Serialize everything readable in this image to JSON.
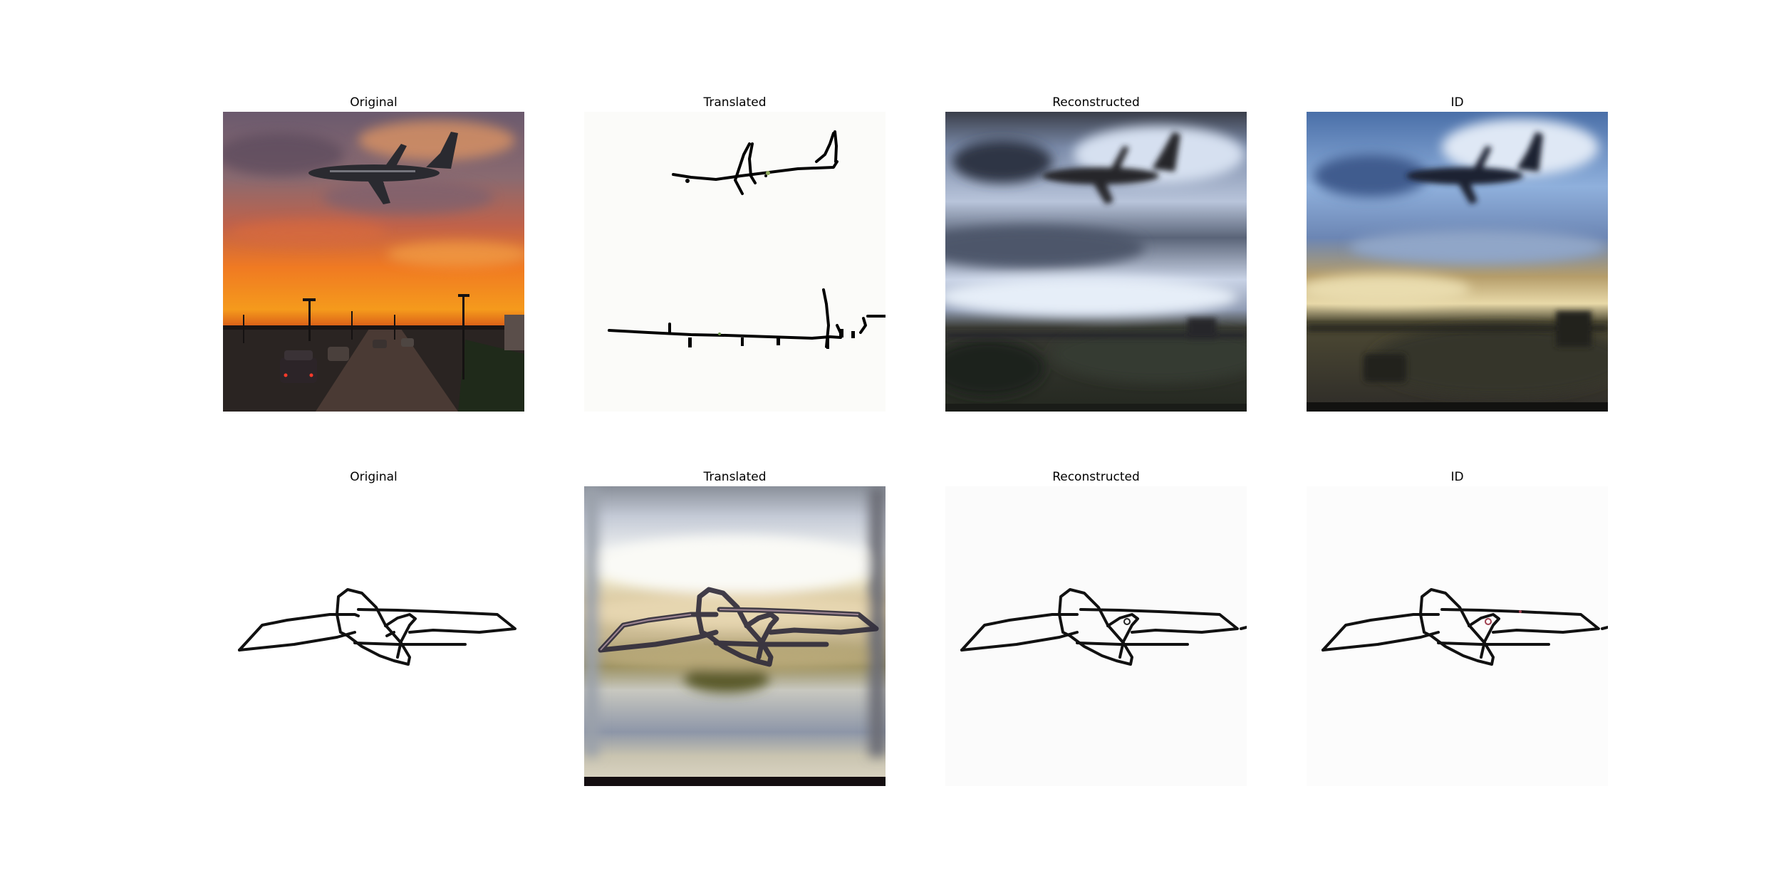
{
  "rows": [
    {
      "panels": [
        {
          "title": "Original"
        },
        {
          "title": "Translated"
        },
        {
          "title": "Reconstructed"
        },
        {
          "title": "ID"
        }
      ]
    },
    {
      "panels": [
        {
          "title": "Original"
        },
        {
          "title": "Translated"
        },
        {
          "title": "Reconstructed"
        },
        {
          "title": "ID"
        }
      ]
    }
  ]
}
